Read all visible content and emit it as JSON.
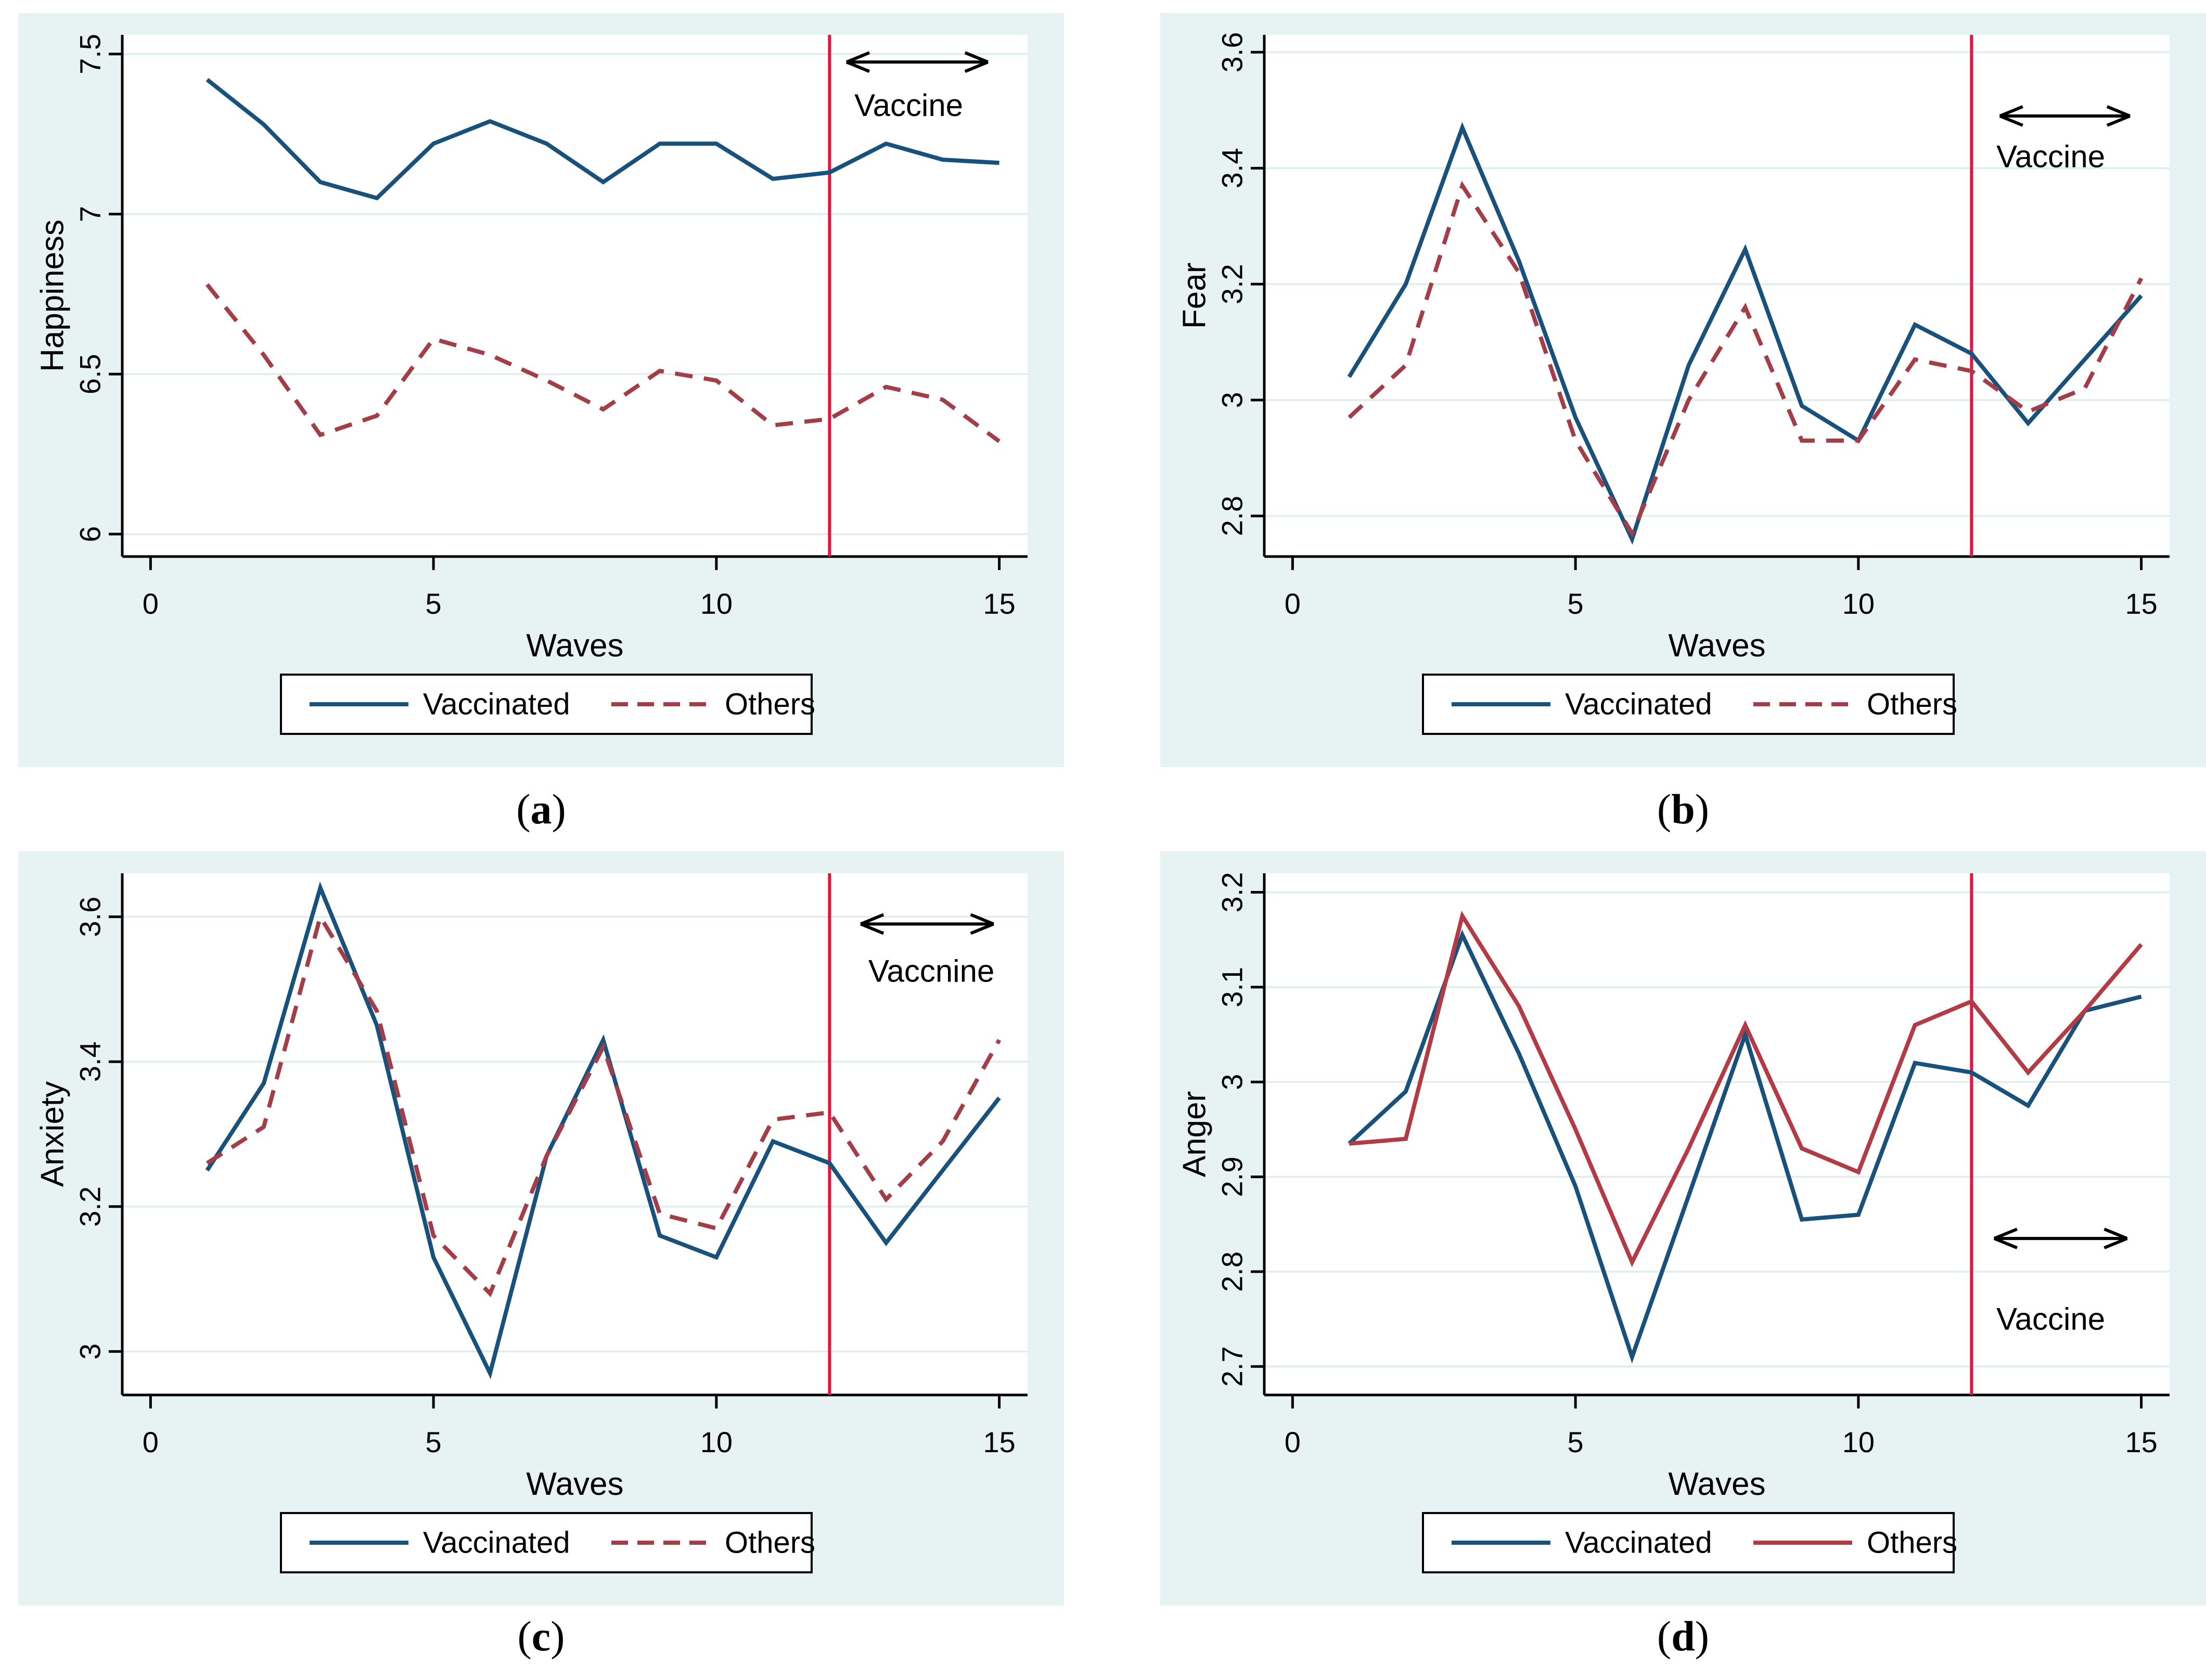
{
  "colors": {
    "panel_background": "#E7F3F2",
    "plot_background": "#FFFFFF",
    "gridline": "#DFEDEB",
    "axis": "#000000",
    "navy": "#17517C",
    "maroon_dashed": "#A33D47",
    "red_solid": "#B23B45",
    "vline_red": "#E8123C",
    "annotation": "#000000"
  },
  "captions": {
    "open": "(",
    "close": ")"
  },
  "chart_data": [
    {
      "id": "a",
      "type": "line",
      "caption_letter": "a",
      "xlabel": "Waves",
      "ylabel": "Happiness",
      "x": [
        1,
        2,
        3,
        4,
        5,
        6,
        7,
        8,
        9,
        10,
        11,
        12,
        13,
        14,
        15
      ],
      "xlim": [
        -0.5,
        15.5
      ],
      "ylim": [
        5.93,
        7.56
      ],
      "xticks": [
        0,
        5,
        10,
        15
      ],
      "xtick_labels": [
        "0",
        "5",
        "10",
        "15"
      ],
      "yticks": [
        6,
        6.5,
        7,
        7.5
      ],
      "ytick_labels": [
        "6",
        "6.5",
        "7",
        "7.5"
      ],
      "grid": true,
      "legend_position": "bottom",
      "vline_x": 12,
      "annotation": {
        "text": "Vaccine",
        "arrow_x1": 12.3,
        "arrow_x2": 14.8,
        "arrow_y": 7.475,
        "label_x": 13.4,
        "label_y": 7.34
      },
      "series": [
        {
          "name": "Vaccinated",
          "color": "#17517C",
          "dash": false,
          "values": [
            7.42,
            7.28,
            7.1,
            7.05,
            7.22,
            7.29,
            7.22,
            7.1,
            7.22,
            7.22,
            7.11,
            7.13,
            7.22,
            7.17,
            7.16
          ]
        },
        {
          "name": "Others",
          "color": "#A33D47",
          "dash": true,
          "values": [
            6.78,
            6.56,
            6.31,
            6.37,
            6.61,
            6.56,
            6.48,
            6.39,
            6.51,
            6.48,
            6.34,
            6.36,
            6.46,
            6.42,
            6.29
          ]
        }
      ]
    },
    {
      "id": "b",
      "type": "line",
      "caption_letter": "b",
      "xlabel": "Waves",
      "ylabel": "Fear",
      "x": [
        1,
        2,
        3,
        4,
        5,
        6,
        7,
        8,
        9,
        10,
        11,
        12,
        13,
        14,
        15
      ],
      "xlim": [
        -0.5,
        15.5
      ],
      "ylim": [
        2.73,
        3.63
      ],
      "xticks": [
        0,
        5,
        10,
        15
      ],
      "xtick_labels": [
        "0",
        "5",
        "10",
        "15"
      ],
      "yticks": [
        2.8,
        3.0,
        3.2,
        3.4,
        3.6
      ],
      "ytick_labels": [
        "2.8",
        "3",
        "3.2",
        "3.4",
        "3.6"
      ],
      "grid": true,
      "legend_position": "bottom",
      "vline_x": 12,
      "annotation": {
        "text": "Vaccine",
        "arrow_x1": 12.5,
        "arrow_x2": 14.8,
        "arrow_y": 3.49,
        "label_x": 13.4,
        "label_y": 3.42
      },
      "series": [
        {
          "name": "Vaccinated",
          "color": "#17517C",
          "dash": false,
          "values": [
            3.04,
            3.2,
            3.47,
            3.24,
            2.97,
            2.76,
            3.06,
            3.26,
            2.99,
            2.93,
            3.13,
            3.08,
            2.96,
            3.07,
            3.18
          ]
        },
        {
          "name": "Others",
          "color": "#A33D47",
          "dash": true,
          "values": [
            2.97,
            3.06,
            3.37,
            3.22,
            2.93,
            2.77,
            3.0,
            3.16,
            2.93,
            2.93,
            3.07,
            3.05,
            2.98,
            3.02,
            3.21
          ]
        }
      ]
    },
    {
      "id": "c",
      "type": "line",
      "caption_letter": "c",
      "xlabel": "Waves",
      "ylabel": "Anxiety",
      "x": [
        1,
        2,
        3,
        4,
        5,
        6,
        7,
        8,
        9,
        10,
        11,
        12,
        13,
        14,
        15
      ],
      "xlim": [
        -0.5,
        15.5
      ],
      "ylim": [
        2.94,
        3.66
      ],
      "xticks": [
        0,
        5,
        10,
        15
      ],
      "xtick_labels": [
        "0",
        "5",
        "10",
        "15"
      ],
      "yticks": [
        3.0,
        3.2,
        3.4,
        3.6
      ],
      "ytick_labels": [
        "3",
        "3.2",
        "3.4",
        "3.6"
      ],
      "grid": true,
      "legend_position": "bottom",
      "vline_x": 12,
      "annotation": {
        "text": "Vaccnine",
        "arrow_x1": 12.55,
        "arrow_x2": 14.9,
        "arrow_y": 3.59,
        "label_x": 13.8,
        "label_y": 3.525
      },
      "series": [
        {
          "name": "Vaccinated",
          "color": "#17517C",
          "dash": false,
          "values": [
            3.25,
            3.37,
            3.64,
            3.45,
            3.13,
            2.97,
            3.27,
            3.43,
            3.16,
            3.13,
            3.29,
            3.26,
            3.15,
            3.25,
            3.35
          ]
        },
        {
          "name": "Others",
          "color": "#A33D47",
          "dash": true,
          "values": [
            3.26,
            3.31,
            3.6,
            3.47,
            3.16,
            3.08,
            3.27,
            3.42,
            3.19,
            3.17,
            3.32,
            3.33,
            3.21,
            3.29,
            3.43
          ]
        }
      ]
    },
    {
      "id": "d",
      "type": "line",
      "caption_letter": "d",
      "xlabel": "Waves",
      "ylabel": "Anger",
      "x": [
        1,
        2,
        3,
        4,
        5,
        6,
        7,
        8,
        9,
        10,
        11,
        12,
        13,
        14,
        15
      ],
      "xlim": [
        -0.5,
        15.5
      ],
      "ylim": [
        2.67,
        3.22
      ],
      "xticks": [
        0,
        5,
        10,
        15
      ],
      "xtick_labels": [
        "0",
        "5",
        "10",
        "15"
      ],
      "yticks": [
        2.7,
        2.8,
        2.9,
        3.0,
        3.1,
        3.2
      ],
      "ytick_labels": [
        "2.7",
        "2.8",
        "2.9",
        "3",
        "3.1",
        "3.2"
      ],
      "grid": true,
      "legend_position": "bottom",
      "vline_x": 12,
      "annotation": {
        "text": "Vaccine",
        "arrow_x1": 12.4,
        "arrow_x2": 14.75,
        "arrow_y": 2.835,
        "label_x": 13.4,
        "label_y": 2.75
      },
      "series": [
        {
          "name": "Vaccinated",
          "color": "#17517C",
          "dash": false,
          "values": [
            2.935,
            2.99,
            3.155,
            3.03,
            2.89,
            2.71,
            2.88,
            3.05,
            2.855,
            2.86,
            3.02,
            3.01,
            2.975,
            3.075,
            3.09
          ]
        },
        {
          "name": "Others",
          "color": "#B23B45",
          "dash": false,
          "values": [
            2.935,
            2.94,
            3.175,
            3.08,
            2.95,
            2.81,
            2.93,
            3.06,
            2.93,
            2.905,
            3.06,
            3.085,
            3.01,
            3.075,
            3.145
          ]
        }
      ]
    }
  ]
}
